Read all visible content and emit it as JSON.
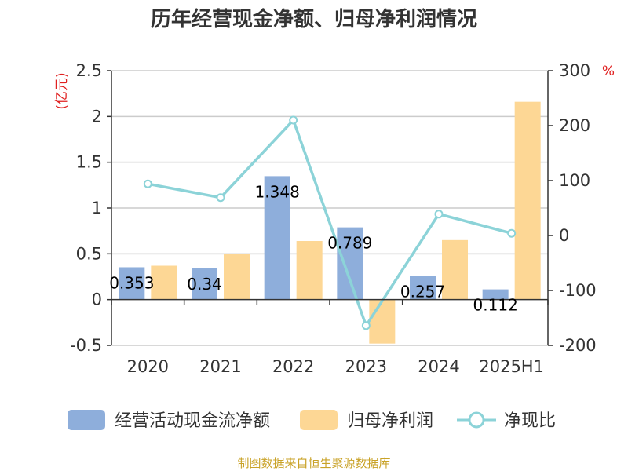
{
  "chart_data": {
    "type": "bar",
    "title": "历年经营现金净额、归母净利润情况",
    "categories": [
      "2020",
      "2021",
      "2022",
      "2023",
      "2024",
      "2025H1"
    ],
    "series": [
      {
        "name": "经营活动现金流净额",
        "type": "bar",
        "axis": "left",
        "values": [
          0.353,
          0.34,
          1.348,
          0.789,
          0.257,
          0.112
        ],
        "labels": [
          "0.353",
          "0.34",
          "1.348",
          "0.789",
          "0.257",
          "0.112"
        ]
      },
      {
        "name": "归母净利润",
        "type": "bar",
        "axis": "left",
        "values": [
          0.37,
          0.5,
          0.64,
          -0.48,
          0.65,
          2.16
        ]
      },
      {
        "name": "净现比",
        "type": "line",
        "axis": "right",
        "values": [
          94,
          69,
          210,
          -164,
          39,
          4
        ]
      }
    ],
    "y_left": {
      "unit": "(亿元)",
      "ylim": [
        -0.5,
        2.5
      ],
      "ticks": [
        2.5,
        2,
        1.5,
        1,
        0.5,
        0,
        -0.5
      ],
      "tick_labels": [
        "2.5",
        "2",
        "1.5",
        "1",
        "0.5",
        "0",
        "-0.5"
      ]
    },
    "y_right": {
      "unit": "%",
      "ylim": [
        -200,
        300
      ],
      "ticks": [
        300,
        200,
        100,
        0,
        -100,
        -200
      ],
      "tick_labels": [
        "300",
        "200",
        "100",
        "0",
        "-100",
        "-200"
      ]
    },
    "grid": true,
    "legend_position": "bottom"
  },
  "colors": {
    "cash_flow_bar": "#8eaedb",
    "net_profit_bar": "#fdd795",
    "ratio_line": "#8cd3d8",
    "unit_text": "#e02020",
    "source_text": "#c9a227",
    "grid": "#cccccc"
  },
  "source": "制图数据来自恒生聚源数据库"
}
